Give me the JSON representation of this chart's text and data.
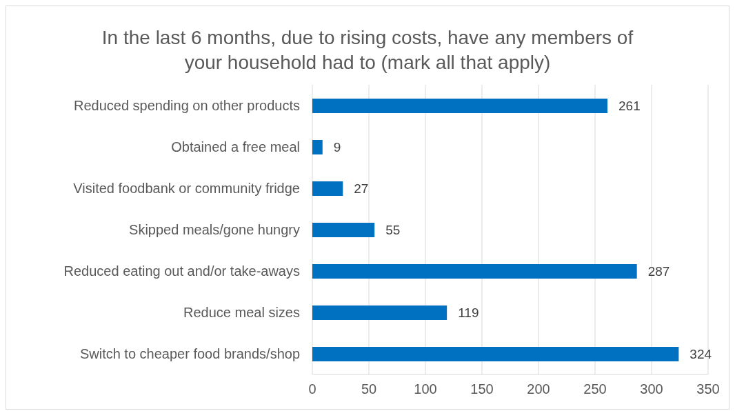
{
  "chart_data": {
    "type": "bar",
    "orientation": "horizontal",
    "title": "In the last 6 months, due to rising costs, have any members of your household had to (mark all that apply)",
    "categories": [
      "Reduced spending on other products",
      "Obtained a free meal",
      "Visited foodbank or community fridge",
      "Skipped meals/gone hungry",
      "Reduced eating out and/or take-aways",
      "Reduce meal sizes",
      "Switch to cheaper food brands/shop"
    ],
    "values": [
      261,
      9,
      27,
      55,
      287,
      119,
      324
    ],
    "color": "#0070c0",
    "xlim": [
      0,
      350
    ],
    "xticks": [
      0,
      50,
      100,
      150,
      200,
      250,
      300,
      350
    ],
    "grid": "x",
    "data_labels": true,
    "legend": false
  }
}
